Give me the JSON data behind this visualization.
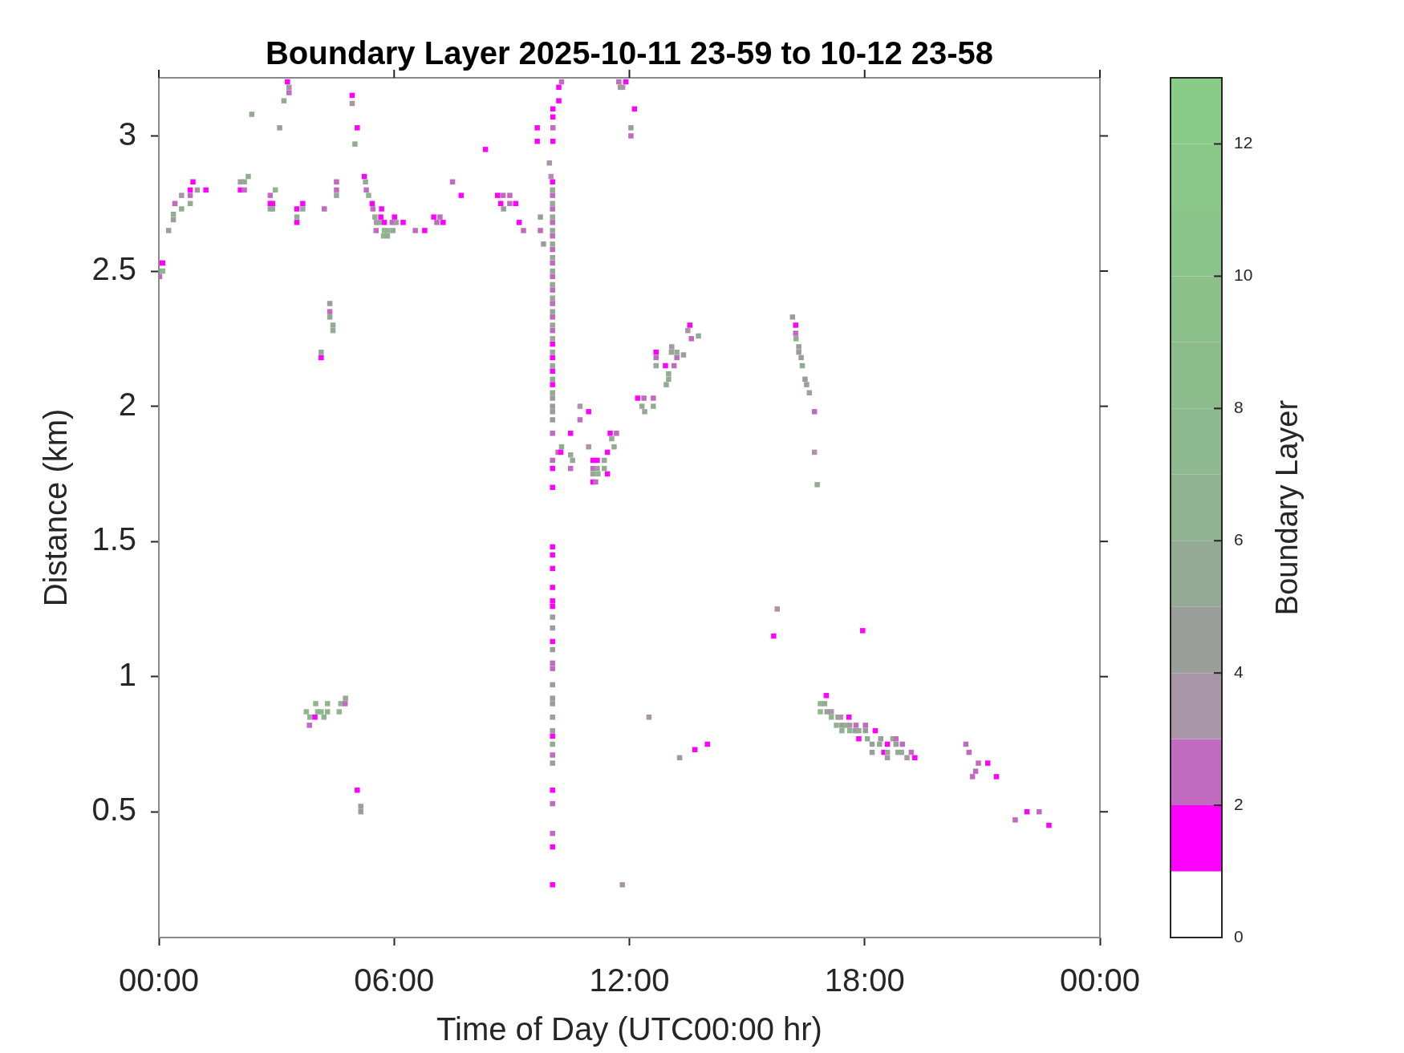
{
  "chart_data": {
    "type": "scatter",
    "title": "Boundary Layer 2025-10-11 23-59 to 10-12 23-58",
    "xlabel": "Time of Day (UTC00:00 hr)",
    "ylabel": "Distance (km)",
    "clabel": "Boundary Layer",
    "marker": "square",
    "xlim": [
      0,
      24
    ],
    "xticks": [
      {
        "value": 0,
        "label": "00:00"
      },
      {
        "value": 6,
        "label": "06:00"
      },
      {
        "value": 12,
        "label": "12:00"
      },
      {
        "value": 18,
        "label": "18:00"
      },
      {
        "value": 24,
        "label": "00:00"
      }
    ],
    "ylim": [
      0.035,
      3.215
    ],
    "yticks": [
      0.5,
      1,
      1.5,
      2,
      2.5,
      3
    ],
    "clim": [
      0,
      13
    ],
    "cticks": [
      0,
      2,
      4,
      6,
      8,
      10,
      12
    ],
    "x": [
      0.02,
      0.1,
      0.02,
      0.1,
      0.02,
      0.25,
      0.37,
      0.37,
      0.41,
      0.58,
      0.58,
      0.8,
      0.8,
      0.8,
      0.87,
      0.98,
      1.2,
      2.08,
      2.08,
      2.18,
      2.18,
      2.28,
      2.37,
      3.08,
      2.97,
      2.84,
      2.84,
      2.84,
      2.9,
      2.9,
      3.28,
      3.32,
      3.32,
      3.19,
      3.52,
      3.52,
      3.52,
      3.67,
      3.67,
      4.22,
      4.53,
      4.53,
      4.53,
      4.93,
      4.93,
      5.06,
      5.0,
      5.24,
      5.27,
      5.29,
      5.35,
      5.44,
      5.46,
      5.51,
      5.66,
      5.68,
      5.55,
      5.62,
      5.54,
      5.75,
      5.75,
      5.73,
      5.84,
      5.83,
      5.95,
      5.97,
      6.01,
      6.05,
      6.23,
      6.54,
      6.78,
      7.01,
      7.09,
      7.17,
      7.25,
      7.49,
      7.71,
      8.33,
      8.64,
      8.72,
      8.78,
      8.79,
      8.95,
      8.95,
      9.1,
      9.19,
      9.3,
      9.65,
      9.65,
      9.73,
      9.73,
      9.81,
      10.27,
      10.2,
      10.2,
      10.05,
      10.05,
      10.05,
      10.05,
      9.96,
      10.0,
      10.04,
      10.04,
      10.04,
      10.04,
      10.04,
      10.04,
      10.04,
      10.04,
      10.04,
      10.04,
      10.04,
      10.04,
      10.04,
      10.04,
      10.04,
      10.04,
      10.04,
      10.04,
      10.04,
      10.04,
      10.04,
      10.04,
      10.04,
      10.04,
      10.04,
      10.04,
      10.04,
      10.04,
      10.04,
      10.04,
      10.04,
      10.04,
      10.04,
      10.04,
      10.04,
      10.04,
      10.04,
      10.04,
      10.04,
      10.04,
      10.04,
      10.04,
      10.04,
      10.04,
      10.04,
      10.04,
      10.04,
      10.04,
      10.04,
      10.04,
      10.04,
      10.04,
      10.04,
      10.04,
      10.04,
      10.04,
      10.04,
      10.04,
      10.04,
      10.04,
      10.04,
      10.04,
      10.04,
      10.04,
      10.04,
      10.04,
      11.73,
      11.91,
      11.77,
      11.83,
      12.13,
      12.04,
      12.04,
      10.27,
      10.18,
      10.25,
      10.5,
      10.5,
      10.55,
      10.5,
      10.74,
      10.74,
      10.96,
      10.96,
      11.07,
      11.18,
      11.07,
      11.18,
      11.07,
      11.2,
      11.07,
      11.14,
      11.36,
      11.36,
      11.44,
      11.44,
      11.51,
      11.55,
      11.61,
      11.67,
      12.21,
      12.37,
      12.32,
      12.39,
      12.61,
      12.61,
      12.68,
      12.68,
      12.68,
      12.92,
      13.0,
      13.0,
      12.94,
      13.08,
      13.07,
      13.14,
      13.21,
      13.21,
      13.38,
      13.54,
      13.49,
      13.58,
      13.76,
      16.16,
      16.24,
      16.24,
      16.25,
      16.32,
      16.32,
      16.38,
      16.41,
      16.48,
      16.52,
      16.59,
      16.72,
      16.72,
      16.79,
      4.36,
      4.36,
      4.36,
      4.44,
      4.44,
      4.14,
      4.14,
      3.76,
      3.85,
      3.84,
      3.98,
      4.0,
      4.05,
      4.14,
      4.21,
      4.3,
      4.3,
      4.6,
      4.64,
      4.76,
      4.75,
      5.06,
      5.15,
      5.15,
      11.82,
      12.5,
      13.28,
      13.67,
      13.99,
      15.77,
      15.68,
      17.95,
      17.02,
      16.87,
      16.87,
      16.98,
      17.04,
      17.15,
      17.15,
      17.32,
      17.39,
      17.28,
      17.42,
      17.42,
      17.6,
      17.52,
      17.62,
      17.62,
      17.78,
      17.76,
      17.85,
      17.85,
      18.02,
      18.02,
      18.07,
      18.27,
      18.19,
      18.19,
      18.41,
      18.38,
      18.58,
      18.49,
      18.58,
      18.58,
      18.72,
      18.8,
      18.8,
      18.85,
      18.96,
      18.94,
      19.08,
      19.19,
      19.28,
      20.58,
      20.66,
      20.9,
      20.83,
      20.75,
      21.14,
      21.36,
      21.84,
      22.14,
      22.45,
      22.7
    ],
    "values": [
      2.53,
      2.53,
      2.5,
      2.5,
      2.48,
      2.65,
      2.71,
      2.69,
      2.75,
      2.78,
      2.73,
      2.8,
      2.78,
      2.75,
      2.83,
      2.8,
      2.8,
      2.83,
      2.8,
      2.83,
      2.8,
      2.85,
      3.08,
      3.03,
      2.8,
      2.78,
      2.75,
      2.73,
      2.75,
      2.73,
      3.2,
      3.18,
      3.16,
      3.13,
      2.73,
      2.7,
      2.68,
      2.75,
      2.73,
      2.73,
      2.83,
      2.8,
      2.78,
      3.15,
      3.12,
      3.03,
      2.97,
      2.85,
      2.83,
      2.8,
      2.78,
      2.75,
      2.73,
      2.7,
      2.7,
      2.73,
      2.68,
      2.68,
      2.65,
      2.68,
      2.65,
      2.63,
      2.65,
      2.63,
      2.68,
      2.65,
      2.7,
      2.68,
      2.68,
      2.65,
      2.65,
      2.7,
      2.68,
      2.7,
      2.68,
      2.83,
      2.78,
      2.95,
      2.78,
      2.75,
      2.78,
      2.73,
      2.78,
      2.75,
      2.75,
      2.68,
      2.65,
      3.03,
      2.98,
      2.7,
      2.65,
      2.6,
      3.2,
      3.18,
      3.13,
      3.1,
      3.07,
      3.03,
      2.98,
      2.9,
      2.85,
      2.83,
      2.8,
      2.78,
      2.75,
      2.73,
      2.7,
      2.68,
      2.65,
      2.63,
      2.6,
      2.58,
      2.55,
      2.53,
      2.5,
      2.48,
      2.45,
      2.43,
      2.4,
      2.38,
      2.35,
      2.33,
      2.3,
      2.28,
      2.25,
      2.23,
      2.2,
      2.18,
      2.15,
      2.13,
      2.1,
      2.08,
      2.05,
      2.03,
      2.0,
      1.98,
      1.95,
      1.9,
      1.8,
      1.77,
      1.7,
      1.48,
      1.45,
      1.4,
      1.33,
      1.28,
      1.26,
      1.22,
      1.18,
      1.13,
      1.1,
      1.05,
      1.03,
      0.97,
      0.92,
      0.9,
      0.85,
      0.8,
      0.78,
      0.75,
      0.71,
      0.68,
      0.58,
      0.53,
      0.42,
      0.37,
      0.23,
      3.2,
      3.2,
      3.18,
      3.18,
      3.1,
      3.03,
      3.0,
      1.85,
      1.83,
      1.83,
      1.9,
      1.82,
      1.8,
      1.77,
      2.0,
      1.95,
      1.98,
      1.85,
      1.8,
      1.8,
      1.77,
      1.77,
      1.75,
      1.75,
      1.72,
      1.72,
      1.8,
      1.77,
      1.83,
      1.75,
      1.9,
      1.88,
      1.85,
      1.9,
      2.03,
      2.03,
      2.0,
      1.98,
      2.03,
      2.0,
      2.2,
      2.18,
      2.15,
      2.15,
      2.12,
      2.1,
      2.08,
      2.22,
      2.2,
      2.15,
      2.2,
      2.18,
      2.19,
      2.3,
      2.28,
      2.25,
      2.26,
      2.33,
      2.3,
      2.27,
      2.25,
      2.22,
      2.2,
      2.18,
      2.15,
      2.1,
      2.08,
      2.05,
      1.98,
      1.83,
      1.71,
      2.38,
      2.35,
      2.33,
      2.3,
      2.28,
      2.2,
      2.18,
      0.87,
      0.85,
      0.82,
      0.85,
      0.9,
      0.87,
      0.87,
      0.85,
      0.9,
      0.87,
      0.87,
      0.9,
      0.92,
      0.9,
      0.58,
      0.52,
      0.5,
      0.23,
      0.85,
      0.7,
      0.73,
      0.75,
      1.25,
      1.15,
      1.17,
      0.93,
      0.9,
      0.87,
      0.9,
      0.87,
      0.87,
      0.85,
      0.85,
      0.85,
      0.82,
      0.82,
      0.8,
      0.85,
      0.82,
      0.82,
      0.8,
      0.82,
      0.8,
      0.8,
      0.77,
      0.82,
      0.8,
      0.77,
      0.8,
      0.75,
      0.72,
      0.77,
      0.75,
      0.75,
      0.72,
      0.72,
      0.7,
      0.77,
      0.77,
      0.75,
      0.72,
      0.75,
      0.72,
      0.7,
      0.72,
      0.7,
      0.75,
      0.72,
      0.68,
      0.65,
      0.63,
      0.68,
      0.63,
      0.47,
      0.5,
      0.5,
      0.45
    ],
    "cvalues": [
      1,
      1,
      5,
      6,
      2,
      4,
      5,
      4,
      2,
      3,
      5,
      1,
      2,
      5,
      1,
      3,
      1,
      3,
      1,
      5,
      2,
      5,
      5,
      4,
      6,
      2,
      1,
      5,
      1,
      5,
      1,
      3,
      2,
      5,
      1,
      5,
      1,
      1,
      5,
      2,
      2,
      2,
      5,
      1,
      3,
      1,
      5,
      1,
      5,
      2,
      6,
      1,
      2,
      5,
      1,
      1,
      3,
      5,
      2,
      1,
      6,
      6,
      6,
      5,
      2,
      5,
      1,
      3,
      1,
      2,
      1,
      1,
      2,
      2,
      1,
      2,
      1,
      1,
      1,
      1,
      2,
      4,
      2,
      2,
      1,
      1,
      2,
      1,
      1,
      4,
      2,
      4,
      2,
      1,
      1,
      1,
      1,
      2,
      1,
      3,
      3,
      1,
      5,
      2,
      5,
      2,
      5,
      2,
      5,
      2,
      5,
      2,
      5,
      2,
      5,
      2,
      5,
      2,
      5,
      2,
      5,
      2,
      5,
      2,
      5,
      1,
      5,
      1,
      5,
      1,
      5,
      1,
      5,
      4,
      4,
      4,
      4,
      2,
      2,
      1,
      1,
      1,
      1,
      1,
      1,
      1,
      1,
      3,
      4,
      1,
      4,
      2,
      2,
      4,
      4,
      4,
      3,
      4,
      1,
      5,
      2,
      4,
      1,
      2,
      2,
      1,
      1,
      2,
      1,
      4,
      3,
      1,
      4,
      2,
      5,
      2,
      1,
      1,
      5,
      5,
      2,
      3,
      2,
      1,
      3,
      1,
      1,
      2,
      3,
      5,
      6,
      1,
      2,
      5,
      5,
      1,
      1,
      1,
      5,
      5,
      2,
      1,
      2,
      5,
      5,
      2,
      5,
      1,
      2,
      5,
      1,
      5,
      5,
      5,
      3,
      5,
      2,
      5,
      2,
      4,
      1,
      3,
      2,
      5,
      4,
      1,
      2,
      5,
      4,
      4,
      4,
      5,
      4,
      3,
      5,
      2,
      3,
      5,
      4,
      2,
      5,
      5,
      5,
      5,
      1,
      7,
      6,
      2,
      1,
      6,
      7,
      7,
      6,
      6,
      6,
      6,
      6,
      5,
      2,
      1,
      4,
      4,
      3,
      3,
      3,
      1,
      1,
      3,
      1,
      1,
      1,
      7,
      7,
      5,
      4,
      3,
      6,
      4,
      3,
      6,
      4,
      6,
      1,
      6,
      3,
      6,
      2,
      4,
      5,
      1,
      2,
      4,
      5,
      1,
      4,
      4,
      4,
      5,
      1,
      1,
      5,
      3,
      5,
      2,
      4,
      5,
      2,
      5,
      3,
      2,
      1,
      2,
      2,
      2,
      2,
      2,
      1,
      1,
      2,
      1,
      2,
      1
    ]
  }
}
